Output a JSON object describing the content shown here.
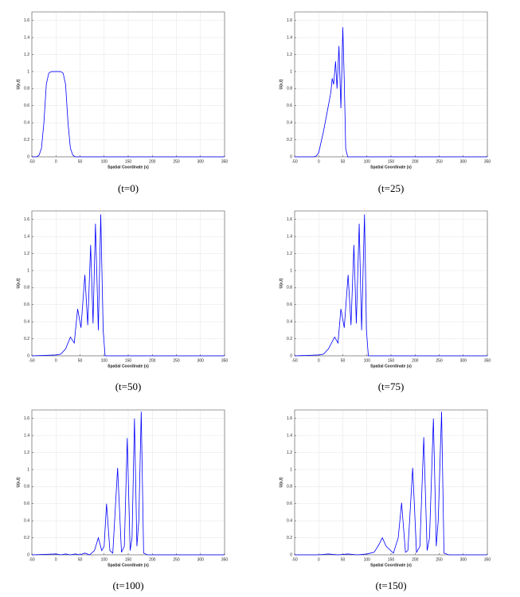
{
  "chart_data": [
    {
      "type": "line",
      "caption": "(t=0)",
      "x_label": "Spatial Coordinate (x)",
      "y_label": "U(x,t)",
      "color": "#0000ff",
      "grid": true,
      "xlim": [
        -50,
        350
      ],
      "ylim": [
        0,
        1.7
      ],
      "xticks": [
        -50,
        0,
        50,
        100,
        150,
        200,
        250,
        300,
        350
      ],
      "yticks": [
        0,
        0.2,
        0.4,
        0.6,
        0.8,
        1,
        1.2,
        1.4,
        1.6
      ],
      "x": [
        -50,
        -40,
        -35,
        -30,
        -25,
        -20,
        -15,
        -10,
        0,
        10,
        15,
        20,
        25,
        30,
        35,
        40,
        350
      ],
      "values": [
        0,
        0,
        0.02,
        0.1,
        0.4,
        0.85,
        0.98,
        1,
        1,
        1,
        0.98,
        0.85,
        0.4,
        0.1,
        0.02,
        0,
        0
      ]
    },
    {
      "type": "line",
      "caption": "(t=25)",
      "x_label": "Spatial Coordinate (x)",
      "y_label": "U(x,t)",
      "color": "#0000ff",
      "grid": true,
      "xlim": [
        -50,
        350
      ],
      "ylim": [
        0,
        1.7
      ],
      "xticks": [
        -50,
        0,
        50,
        100,
        150,
        200,
        250,
        300,
        350
      ],
      "yticks": [
        0,
        0.2,
        0.4,
        0.6,
        0.8,
        1,
        1.2,
        1.4,
        1.6
      ],
      "x": [
        -50,
        -10,
        -5,
        0,
        10,
        20,
        25,
        28,
        31,
        35,
        38,
        42,
        46,
        50,
        53,
        56,
        60,
        350
      ],
      "values": [
        0,
        0,
        0.01,
        0.05,
        0.3,
        0.6,
        0.75,
        0.92,
        0.85,
        1.12,
        0.8,
        1.3,
        0.57,
        1.52,
        0.9,
        0.1,
        0,
        0
      ]
    },
    {
      "type": "line",
      "caption": "(t=50)",
      "x_label": "Spatial Coordinate (x)",
      "y_label": "U(x,t)",
      "color": "#0000ff",
      "grid": true,
      "xlim": [
        -50,
        350
      ],
      "ylim": [
        0,
        1.7
      ],
      "xticks": [
        -50,
        0,
        50,
        100,
        150,
        200,
        250,
        300,
        350
      ],
      "yticks": [
        0,
        0.2,
        0.4,
        0.6,
        0.8,
        1,
        1.2,
        1.4,
        1.6
      ],
      "x": [
        -50,
        0,
        10,
        20,
        30,
        38,
        45,
        52,
        60,
        66,
        72,
        77,
        82,
        88,
        93,
        98,
        102,
        350
      ],
      "values": [
        0,
        0.01,
        0.02,
        0.08,
        0.22,
        0.15,
        0.55,
        0.33,
        0.95,
        0.36,
        1.3,
        0.38,
        1.55,
        0.3,
        1.66,
        0.3,
        0,
        0
      ]
    },
    {
      "type": "line",
      "caption": "(t=75)",
      "x_label": "Spatial Coordinate (x)",
      "y_label": "U(x,t)",
      "color": "#0000ff",
      "grid": true,
      "xlim": [
        -50,
        350
      ],
      "ylim": [
        0,
        1.7
      ],
      "xticks": [
        -50,
        0,
        50,
        100,
        150,
        200,
        250,
        300,
        350
      ],
      "yticks": [
        0,
        0.2,
        0.4,
        0.6,
        0.8,
        1,
        1.2,
        1.4,
        1.6
      ],
      "x": [
        -50,
        0,
        10,
        20,
        33,
        40,
        46,
        53,
        61,
        67,
        73,
        78,
        84,
        89,
        95,
        99,
        103,
        350
      ],
      "values": [
        0,
        0.01,
        0.02,
        0.08,
        0.22,
        0.15,
        0.55,
        0.33,
        0.95,
        0.36,
        1.3,
        0.38,
        1.55,
        0.3,
        1.66,
        0.3,
        0,
        0
      ]
    },
    {
      "type": "line",
      "caption": "(t=100)",
      "x_label": "Spatial Coordinate (x)",
      "y_label": "U(x,t)",
      "color": "#0000ff",
      "grid": true,
      "xlim": [
        -50,
        350
      ],
      "ylim": [
        0,
        1.7
      ],
      "xticks": [
        -50,
        0,
        50,
        100,
        150,
        200,
        250,
        300,
        350
      ],
      "yticks": [
        0,
        0.2,
        0.4,
        0.6,
        0.8,
        1,
        1.2,
        1.4,
        1.6
      ],
      "x": [
        -50,
        0,
        10,
        20,
        30,
        40,
        50,
        60,
        70,
        80,
        88,
        95,
        100,
        105,
        112,
        118,
        128,
        136,
        142,
        148,
        154,
        158,
        163,
        168,
        172,
        177,
        182,
        190,
        350
      ],
      "values": [
        0,
        0.01,
        0,
        0.01,
        0,
        0.01,
        0,
        0.02,
        0,
        0.05,
        0.2,
        0.05,
        0.1,
        0.6,
        0.05,
        0.02,
        1.02,
        0.03,
        0.1,
        1.37,
        0.05,
        0.2,
        1.6,
        0.1,
        0.4,
        1.68,
        0.02,
        0,
        0
      ]
    },
    {
      "type": "line",
      "caption": "(t=150)",
      "x_label": "Spatial Coordinate (x)",
      "y_label": "U(x,t)",
      "color": "#0000ff",
      "grid": true,
      "xlim": [
        -50,
        350
      ],
      "ylim": [
        0,
        1.7
      ],
      "xticks": [
        -50,
        0,
        50,
        100,
        150,
        200,
        250,
        300,
        350
      ],
      "yticks": [
        0,
        0.2,
        0.4,
        0.6,
        0.8,
        1,
        1.2,
        1.4,
        1.6
      ],
      "x": [
        -50,
        0,
        20,
        40,
        60,
        80,
        100,
        115,
        125,
        132,
        140,
        155,
        165,
        172,
        180,
        185,
        195,
        203,
        210,
        218,
        225,
        230,
        238,
        244,
        248,
        255,
        260,
        270,
        350
      ],
      "values": [
        0,
        0,
        0.01,
        0,
        0.01,
        0,
        0.01,
        0.03,
        0.12,
        0.2,
        0.1,
        0.02,
        0.2,
        0.61,
        0.03,
        0.05,
        1.02,
        0.03,
        0.1,
        1.38,
        0.05,
        0.2,
        1.6,
        0.1,
        0.4,
        1.68,
        0.02,
        0,
        0
      ]
    }
  ]
}
